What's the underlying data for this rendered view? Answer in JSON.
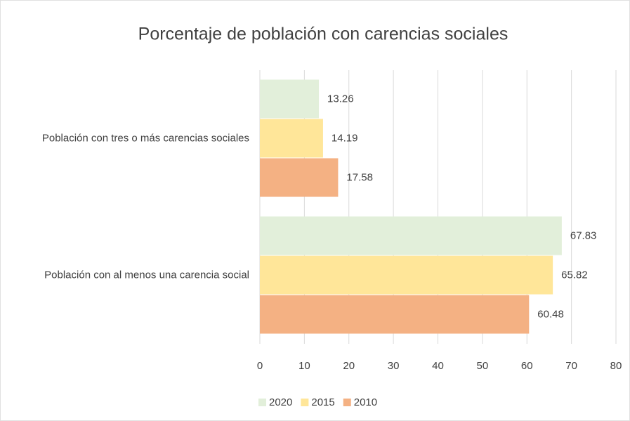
{
  "chart_data": {
    "type": "bar",
    "orientation": "horizontal",
    "title": "Porcentaje de población con carencias sociales",
    "categories": [
      "Población con tres o más carencias sociales",
      "Población con al menos una carencia social"
    ],
    "series": [
      {
        "name": "2020",
        "color": "#e2efda",
        "values": [
          13.26,
          67.83
        ]
      },
      {
        "name": "2015",
        "color": "#ffe699",
        "values": [
          14.19,
          65.82
        ]
      },
      {
        "name": "2010",
        "color": "#f4b183",
        "values": [
          17.58,
          60.48
        ]
      }
    ],
    "xlim": [
      0,
      80
    ],
    "xticks": [
      0,
      10,
      20,
      30,
      40,
      50,
      60,
      70,
      80
    ],
    "grid": true,
    "legend": "bottom"
  }
}
